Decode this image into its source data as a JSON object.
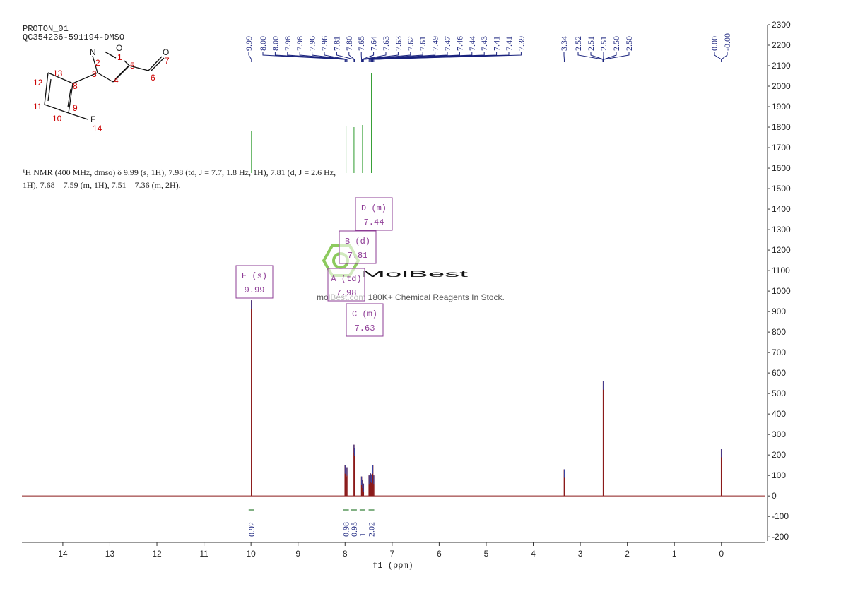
{
  "chart_data": {
    "type": "spectrum",
    "title": "PROTON_01",
    "subtitle": "QC354236-591194-DMSO",
    "annotation": [
      "¹H NMR (400 MHz, dmso) δ 9.99 (s, 1H), 7.98 (td, J = 7.7, 1.8 Hz, 1H), 7.81 (d, J = 2.6 Hz,",
      "1H), 7.68 – 7.59 (m, 1H), 7.51 – 7.36 (m, 2H)."
    ],
    "watermark": "MolBest",
    "watermark_sub": "molBest.com 180K+ Chemical Reagents In Stock.",
    "xlabel": "f1 (ppm)",
    "x": [
      9.99,
      8.0,
      7.98,
      7.96,
      7.81,
      7.8,
      7.65,
      7.63,
      7.61,
      7.49,
      7.46,
      7.44,
      7.41,
      7.39,
      3.34,
      2.51,
      0.0
    ],
    "values": [
      955,
      150,
      90,
      140,
      250,
      235,
      95,
      80,
      60,
      100,
      110,
      105,
      150,
      100,
      130,
      560,
      230
    ],
    "color": "#8b1a1a",
    "xlim": [
      14.87,
      -0.92
    ],
    "xticks": [
      14,
      13,
      12,
      11,
      10,
      9,
      8,
      7,
      6,
      5,
      4,
      3,
      2,
      1,
      0
    ],
    "ylim": [
      -220,
      2300
    ],
    "yticks": [
      -200,
      -100,
      0,
      100,
      200,
      300,
      400,
      500,
      600,
      700,
      800,
      900,
      1000,
      1100,
      1200,
      1300,
      1400,
      1500,
      1600,
      1700,
      1800,
      1900,
      2000,
      2100,
      2200,
      2300
    ],
    "peak_labels": [
      [
        "9.99"
      ],
      [
        "8.00",
        "8.00",
        "7.98",
        "7.98",
        "7.96",
        "7.96",
        "7.81",
        "7.80",
        "7.65",
        "7.64",
        "7.63",
        "7.63",
        "7.62",
        "7.61",
        "7.49",
        "7.47",
        "7.46",
        "7.44",
        "7.43",
        "7.41",
        "7.41",
        "7.39"
      ],
      [
        "3.34"
      ],
      [
        "2.52",
        "2.51",
        "2.51",
        "2.50",
        "2.50"
      ],
      [
        "0.00",
        "-0.00"
      ]
    ],
    "integrals": [
      {
        "x": 9.99,
        "values": 0.92
      },
      {
        "x": 7.98,
        "values": 0.98
      },
      {
        "x": 7.81,
        "values": 0.95
      },
      {
        "x": 7.63,
        "values": 1.0
      },
      {
        "x": 7.44,
        "values": 2.02
      }
    ],
    "multiplets": [
      {
        "name": "E (s)",
        "shift": "9.99"
      },
      {
        "name": "A (td)",
        "shift": "7.98"
      },
      {
        "name": "B (d)",
        "shift": "7.81"
      },
      {
        "name": "C (m)",
        "shift": "7.63"
      },
      {
        "name": "D (m)",
        "shift": "7.44"
      }
    ],
    "molecule": [
      "N",
      "O",
      "O",
      "F",
      "1",
      "2",
      "3",
      "4",
      "5",
      "6",
      "7",
      "8",
      "9",
      "10",
      "11",
      "12",
      "13",
      "14"
    ]
  }
}
